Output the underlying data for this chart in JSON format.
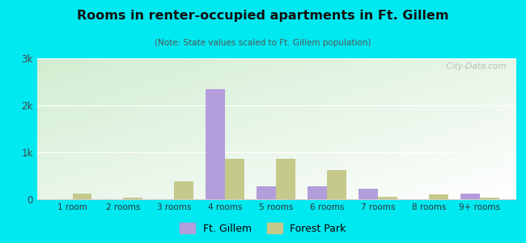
{
  "title": "Rooms in renter-occupied apartments in Ft. Gillem",
  "subtitle": "(Note: State values scaled to Ft. Gillem population)",
  "categories": [
    "1 room",
    "2 rooms",
    "3 rooms",
    "4 rooms",
    "5 rooms",
    "6 rooms",
    "7 rooms",
    "8 rooms",
    "9+ rooms"
  ],
  "ft_gillem": [
    0,
    0,
    0,
    2350,
    280,
    280,
    230,
    0,
    120
  ],
  "forest_park": [
    120,
    30,
    380,
    870,
    870,
    620,
    60,
    110,
    40
  ],
  "ft_gillem_color": "#b39ddb",
  "forest_park_color": "#c5c98a",
  "background_outer": "#00e8f0",
  "ylim": [
    0,
    3000
  ],
  "yticks": [
    0,
    1000,
    2000,
    3000
  ],
  "ytick_labels": [
    "0",
    "1k",
    "2k",
    "3k"
  ],
  "bar_width": 0.38,
  "watermark": "  City-Data.com"
}
